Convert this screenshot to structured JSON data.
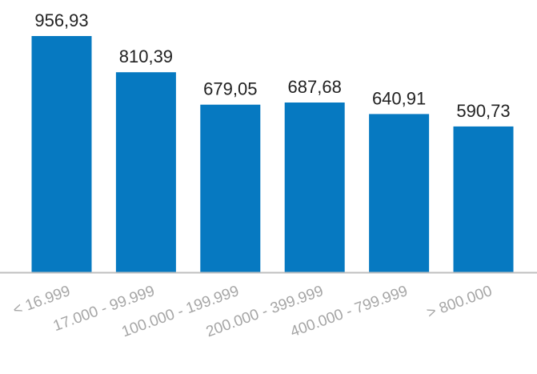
{
  "colors": {
    "bar": "#0679c1",
    "axis": "#bfbfbf",
    "value_text": "#222222",
    "tick_text": "#a6a6a6",
    "background": "#ffffff"
  },
  "chart_data": {
    "type": "bar",
    "title": "",
    "xlabel": "",
    "ylabel": "",
    "grid": false,
    "legend": "none",
    "ylim": [
      0,
      1000
    ],
    "categories": [
      "< 16.999",
      "17.000 - 99.999",
      "100.000 - 199.999",
      "200.000 - 399.999",
      "400.000 - 799.999",
      "> 800.000"
    ],
    "values": [
      956.93,
      810.39,
      679.05,
      687.68,
      640.91,
      590.73
    ],
    "value_labels": [
      "956,93",
      "810,39",
      "679,05",
      "687,68",
      "640,91",
      "590,73"
    ]
  }
}
